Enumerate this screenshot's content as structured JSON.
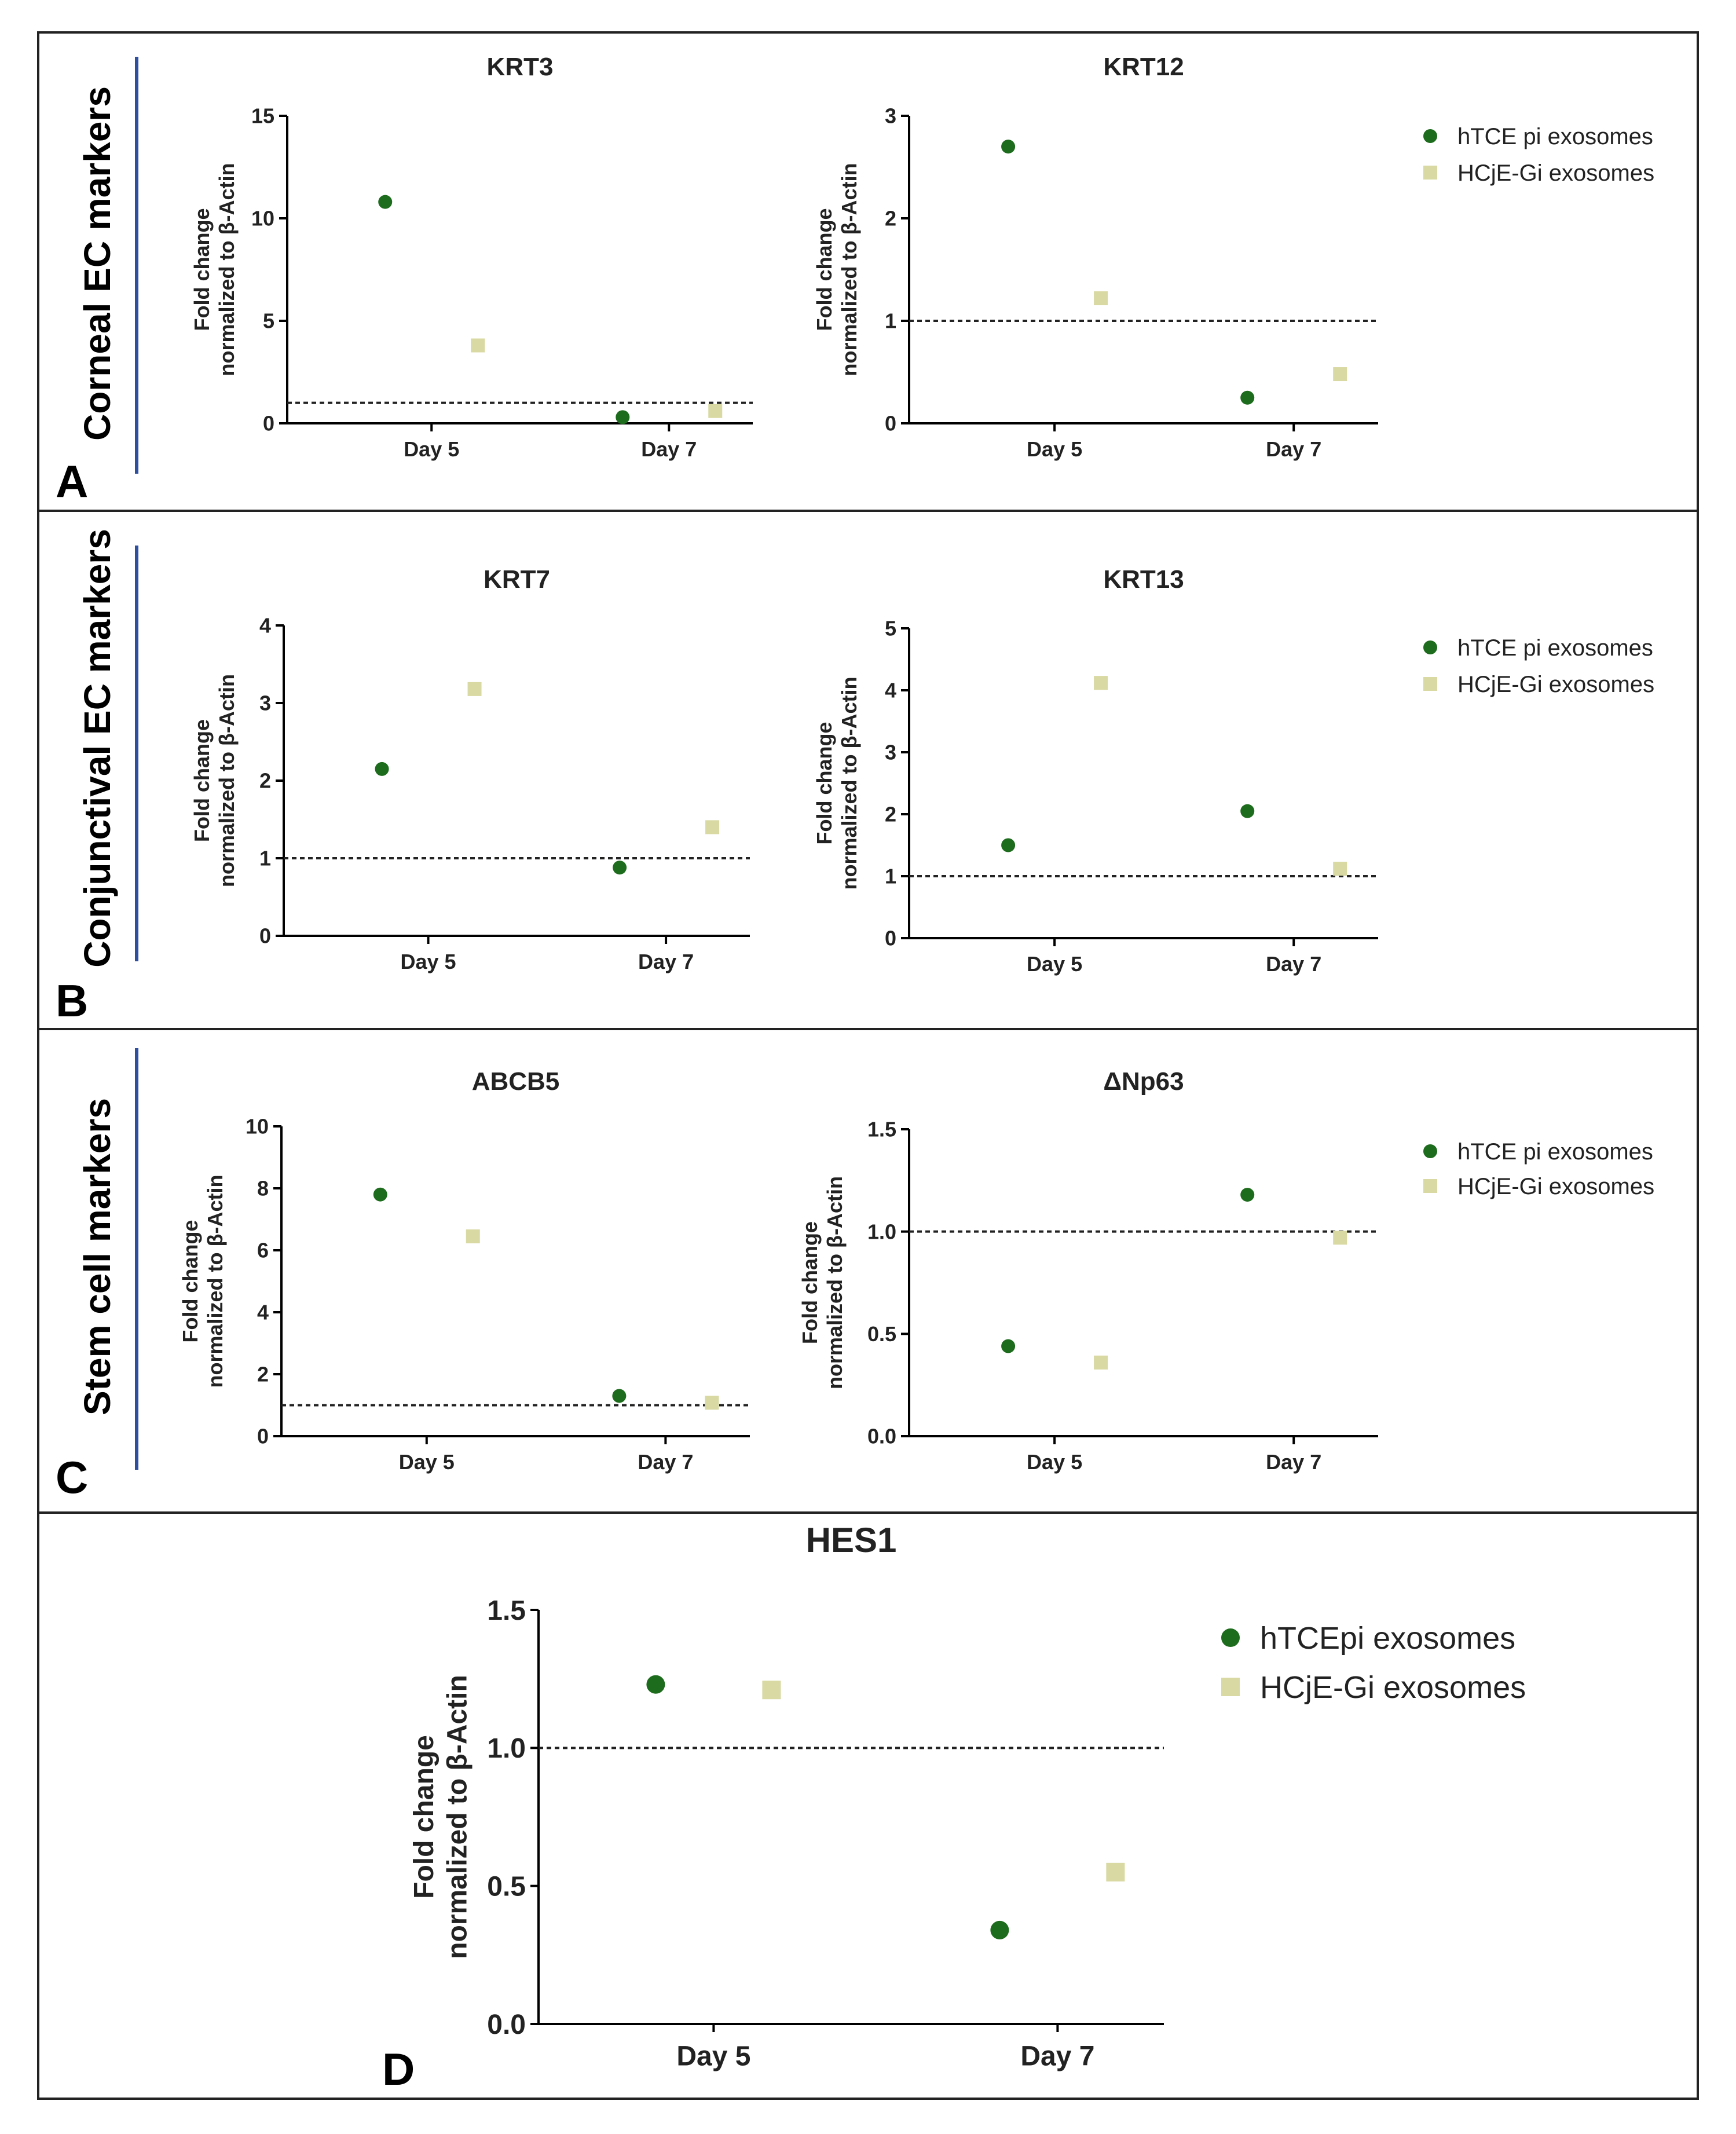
{
  "colors": {
    "series1": "#1d6b1d",
    "series2": "#d9d9a3",
    "bar": "#2f4f9f"
  },
  "panels": [
    {
      "letter": "A",
      "side_label": "Corneal EC markers"
    },
    {
      "letter": "B",
      "side_label": "Conjunctival EC markers"
    },
    {
      "letter": "C",
      "side_label": "Stem cell markers"
    },
    {
      "letter": "D",
      "side_label": ""
    }
  ],
  "legend": {
    "items": [
      {
        "label": "hTCE pi exosomes",
        "marker": "circle",
        "color": "#1d6b1d"
      },
      {
        "label": "HCjE-Gi exosomes",
        "marker": "square",
        "color": "#d9d9a3"
      }
    ],
    "items_d": [
      {
        "label": "hTCEpi exosomes",
        "marker": "circle",
        "color": "#1d6b1d"
      },
      {
        "label": "HCjE-Gi exosomes",
        "marker": "square",
        "color": "#d9d9a3"
      }
    ]
  },
  "chart_data": [
    {
      "type": "scatter",
      "title": "KRT3",
      "ylabel": "Fold change\nnormalized to β-Actin",
      "categories": [
        "Day 5",
        "Day 7"
      ],
      "ylim": [
        0,
        15
      ],
      "yticks": [
        "0",
        "5",
        "10",
        "15"
      ],
      "ytick_values": [
        0,
        5,
        10,
        15
      ],
      "reference_line": 1,
      "series": [
        {
          "name": "hTCE pi exosomes",
          "values": [
            10.8,
            0.3
          ]
        },
        {
          "name": "HCjE-Gi exosomes",
          "values": [
            3.8,
            0.6
          ]
        }
      ]
    },
    {
      "type": "scatter",
      "title": "KRT12",
      "ylabel": "Fold change\nnormalized to β-Actin",
      "categories": [
        "Day 5",
        "Day 7"
      ],
      "ylim": [
        0,
        3
      ],
      "yticks": [
        "0",
        "1",
        "2",
        "3"
      ],
      "ytick_values": [
        0,
        1,
        2,
        3
      ],
      "reference_line": 1,
      "series": [
        {
          "name": "hTCE pi exosomes",
          "values": [
            2.7,
            0.25
          ]
        },
        {
          "name": "HCjE-Gi exosomes",
          "values": [
            1.22,
            0.48
          ]
        }
      ]
    },
    {
      "type": "scatter",
      "title": "KRT7",
      "ylabel": "Fold change\nnormalized to β-Actin",
      "categories": [
        "Day 5",
        "Day 7"
      ],
      "ylim": [
        0,
        4
      ],
      "yticks": [
        "0",
        "1",
        "2",
        "3",
        "4"
      ],
      "ytick_values": [
        0,
        1,
        2,
        3,
        4
      ],
      "reference_line": 1,
      "series": [
        {
          "name": "hTCE pi exosomes",
          "values": [
            2.15,
            0.88
          ]
        },
        {
          "name": "HCjE-Gi exosomes",
          "values": [
            3.18,
            1.4
          ]
        }
      ]
    },
    {
      "type": "scatter",
      "title": "KRT13",
      "ylabel": "Fold change\nnormalized to β-Actin",
      "categories": [
        "Day 5",
        "Day 7"
      ],
      "ylim": [
        0,
        5
      ],
      "yticks": [
        "0",
        "1",
        "2",
        "3",
        "4",
        "5"
      ],
      "ytick_values": [
        0,
        1,
        2,
        3,
        4,
        5
      ],
      "reference_line": 1,
      "series": [
        {
          "name": "hTCE pi exosomes",
          "values": [
            1.5,
            2.05
          ]
        },
        {
          "name": "HCjE-Gi exosomes",
          "values": [
            4.12,
            1.12
          ]
        }
      ]
    },
    {
      "type": "scatter",
      "title": "ABCB5",
      "ylabel": "Fold change\nnormalized to β-Actin",
      "categories": [
        "Day 5",
        "Day 7"
      ],
      "ylim": [
        0,
        10
      ],
      "yticks": [
        "0",
        "2",
        "4",
        "6",
        "8",
        "10"
      ],
      "ytick_values": [
        0,
        2,
        4,
        6,
        8,
        10
      ],
      "reference_line": 1,
      "series": [
        {
          "name": "hTCE pi exosomes",
          "values": [
            7.8,
            1.3
          ]
        },
        {
          "name": "HCjE-Gi exosomes",
          "values": [
            6.45,
            1.08
          ]
        }
      ]
    },
    {
      "type": "scatter",
      "title": "ΔNp63",
      "ylabel": "Fold change\nnormalized to β-Actin",
      "categories": [
        "Day 5",
        "Day 7"
      ],
      "ylim": [
        0,
        1.5
      ],
      "yticks": [
        "0.0",
        "0.5",
        "1.0",
        "1.5"
      ],
      "ytick_values": [
        0,
        0.5,
        1,
        1.5
      ],
      "reference_line": 1,
      "series": [
        {
          "name": "hTCE pi exosomes",
          "values": [
            0.44,
            1.18
          ]
        },
        {
          "name": "HCjE-Gi exosomes",
          "values": [
            0.36,
            0.97
          ]
        }
      ]
    },
    {
      "type": "scatter",
      "title": "HES1",
      "ylabel": "Fold change\nnormalized to β-Actin",
      "categories": [
        "Day 5",
        "Day 7"
      ],
      "ylim": [
        0,
        1.5
      ],
      "yticks": [
        "0.0",
        "0.5",
        "1.0",
        "1.5"
      ],
      "ytick_values": [
        0,
        0.5,
        1,
        1.5
      ],
      "reference_line": 1,
      "series": [
        {
          "name": "hTCEpi exosomes",
          "values": [
            1.23,
            0.34
          ]
        },
        {
          "name": "HCjE-Gi exosomes",
          "values": [
            1.21,
            0.55
          ]
        }
      ]
    }
  ]
}
